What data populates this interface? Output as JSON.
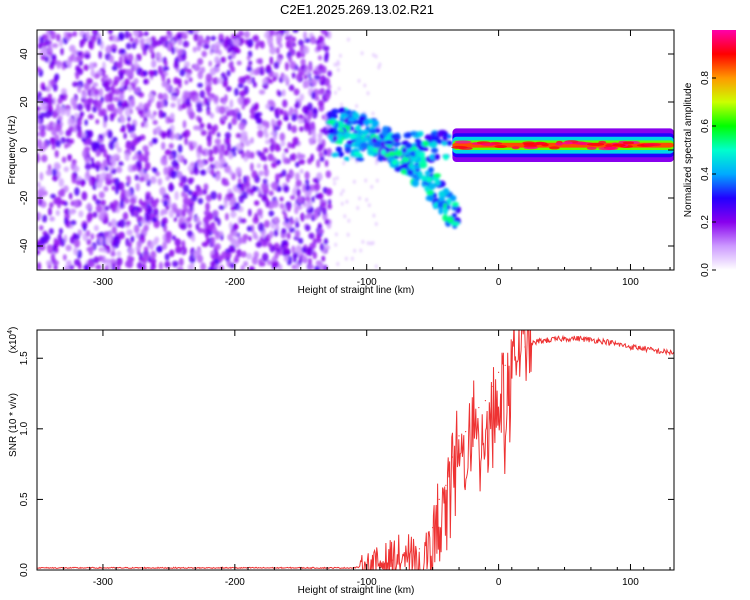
{
  "title": "C2E1.2025.269.13.02.R21",
  "colors": {
    "snr_line": "#ee3333",
    "colorbar": [
      "#ffffff",
      "#cc99ff",
      "#8800ee",
      "#2200ff",
      "#00aaff",
      "#00ffcc",
      "#00ff00",
      "#ccff00",
      "#ff9900",
      "#ff0000",
      "#ff00aa"
    ]
  },
  "chart_data": [
    {
      "type": "heatmap",
      "xlabel": "Height of straight line (km)",
      "ylabel": "Frequency (Hz)",
      "xlim": [
        -350,
        133
      ],
      "ylim": [
        -50,
        50
      ],
      "xticks": [
        -300,
        -200,
        -100,
        0,
        100
      ],
      "yticks": [
        -40,
        -20,
        0,
        20,
        40
      ],
      "xtick_labels": [
        "-300",
        "-200",
        "-100",
        "0",
        "100"
      ],
      "ytick_labels": [
        "-40",
        "-20",
        "0",
        "20",
        "40"
      ],
      "colorbar": {
        "label": "Normalized spectral amplitude",
        "range": [
          0,
          1
        ],
        "ticks": [
          0.0,
          0.2,
          0.4,
          0.6,
          0.8
        ],
        "tick_labels": [
          "0.0",
          "0.2",
          "0.4",
          "0.6",
          "0.8"
        ]
      },
      "regions": [
        {
          "x": [
            -350,
            -128
          ],
          "freq": [
            -50,
            50
          ],
          "description": "noise"
        },
        {
          "x": [
            -128,
            -30
          ],
          "freq_start": 10,
          "freq_end": -30
        },
        {
          "x": [
            -35,
            133
          ],
          "freq_center": 2
        }
      ]
    },
    {
      "type": "line",
      "xlabel": "Height of straight line (km)",
      "ylabel": "SNR (10 * v/v)",
      "ymultiplier": "(x10",
      "ymultiplier_exp": "4",
      "ymultiplier_close": ")",
      "xlim": [
        -350,
        133
      ],
      "ylim": [
        0,
        1.7
      ],
      "xticks": [
        -300,
        -200,
        -100,
        0,
        100
      ],
      "yticks": [
        0.0,
        0.5,
        1.0,
        1.5
      ],
      "xtick_labels": [
        "-300",
        "-200",
        "-100",
        "0",
        "100"
      ],
      "ytick_labels": [
        "0.0",
        "0.5",
        "1.0",
        "1.5"
      ],
      "series": [
        {
          "x": [
            -350,
            -300,
            -250,
            -200,
            -150,
            -110,
            -100,
            -90,
            -80,
            -70,
            -60,
            -55,
            -50,
            -45,
            -40,
            -35,
            -30,
            -25,
            -20,
            -15,
            -10,
            -5,
            0,
            5,
            10,
            20,
            30,
            40,
            50,
            60,
            70,
            80,
            90,
            100,
            110,
            120,
            133
          ],
          "y": [
            0.015,
            0.015,
            0.015,
            0.015,
            0.015,
            0.015,
            0.03,
            0.05,
            0.07,
            0.1,
            0.15,
            0.2,
            0.3,
            0.5,
            0.6,
            0.8,
            0.95,
            0.98,
            1.05,
            1.15,
            1.2,
            1.3,
            1.4,
            1.45,
            1.5,
            1.58,
            1.62,
            1.63,
            1.64,
            1.64,
            1.63,
            1.62,
            1.6,
            1.58,
            1.57,
            1.55,
            1.54
          ]
        }
      ]
    }
  ]
}
